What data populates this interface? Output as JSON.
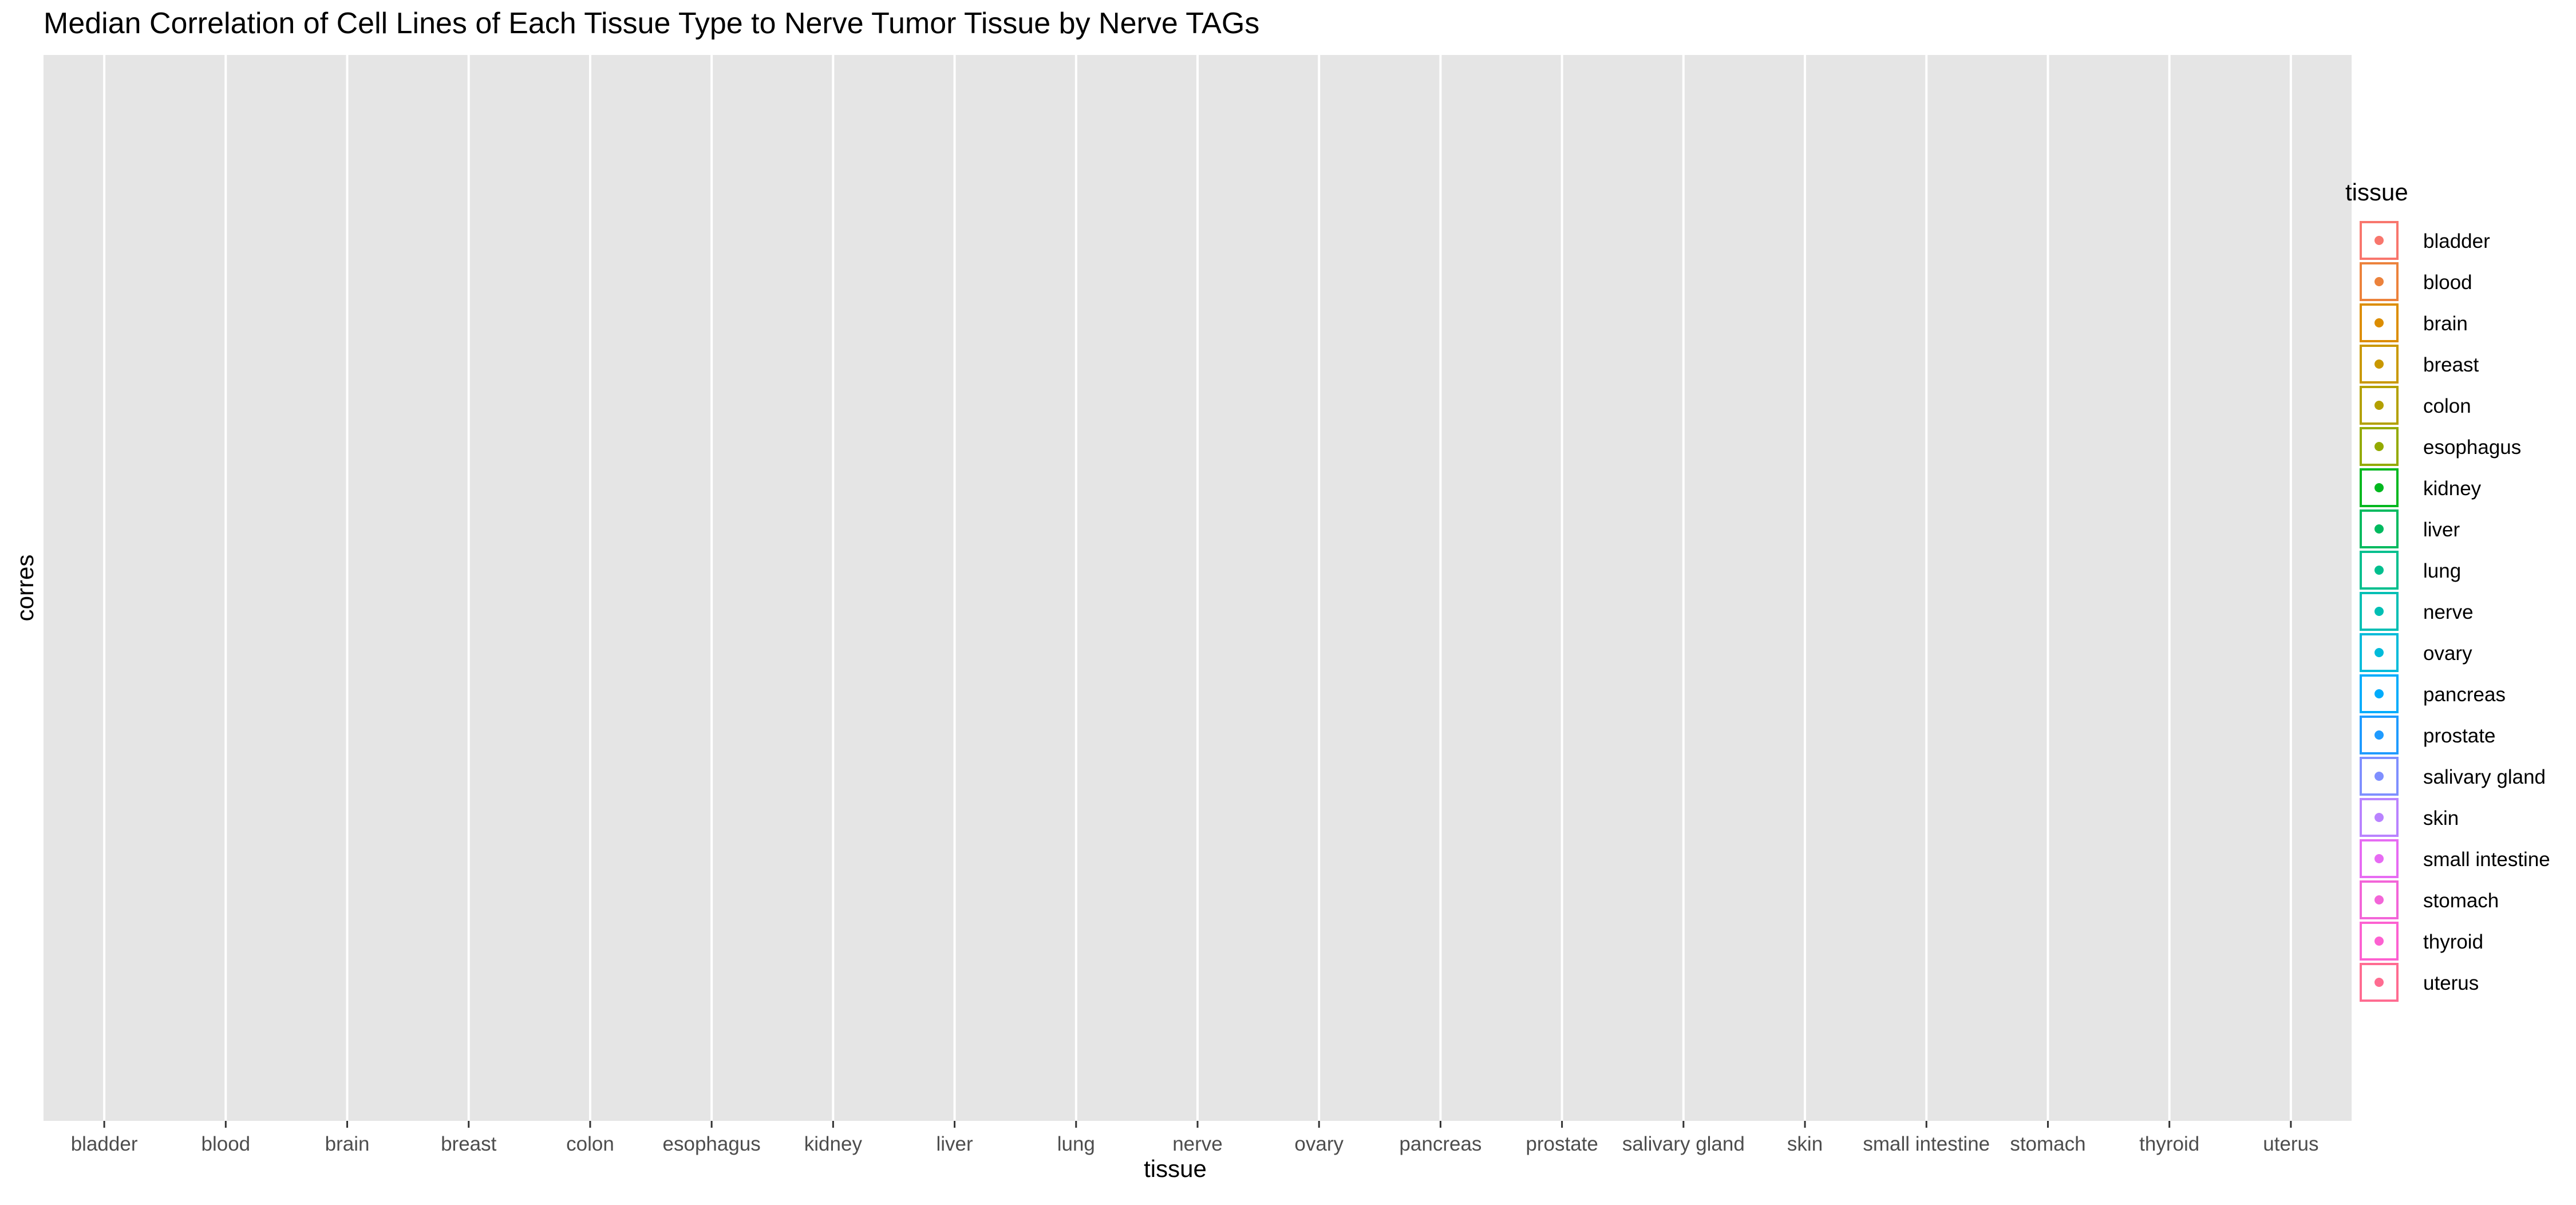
{
  "chart_data": {
    "type": "scatter",
    "title": "Median Correlation of Cell Lines of Each Tissue Type to Nerve Tumor Tissue by Nerve TAGs",
    "xlabel": "tissue",
    "ylabel": "corres",
    "categories": [
      "bladder",
      "blood",
      "brain",
      "breast",
      "colon",
      "esophagus",
      "kidney",
      "liver",
      "lung",
      "nerve",
      "ovary",
      "pancreas",
      "prostate",
      "salivary gland",
      "skin",
      "small intestine",
      "stomach",
      "thyroid",
      "uterus"
    ],
    "values": [],
    "grid": true,
    "legend": {
      "title": "tissue",
      "position": "right",
      "entries": [
        {
          "label": "bladder",
          "color": "#F8766D"
        },
        {
          "label": "blood",
          "color": "#EC823C"
        },
        {
          "label": "brain",
          "color": "#DC8D00"
        },
        {
          "label": "breast",
          "color": "#C99800"
        },
        {
          "label": "colon",
          "color": "#B3A000"
        },
        {
          "label": "esophagus",
          "color": "#93AA00"
        },
        {
          "label": "kidney",
          "color": "#00B81F"
        },
        {
          "label": "liver",
          "color": "#00BA5F"
        },
        {
          "label": "lung",
          "color": "#00BF8E"
        },
        {
          "label": "nerve",
          "color": "#00BFB4"
        },
        {
          "label": "ovary",
          "color": "#00BBDA"
        },
        {
          "label": "pancreas",
          "color": "#00ACFC"
        },
        {
          "label": "prostate",
          "color": "#1F9BFF"
        },
        {
          "label": "salivary gland",
          "color": "#7F8FFF"
        },
        {
          "label": "skin",
          "color": "#B983FF"
        },
        {
          "label": "small intestine",
          "color": "#E76BF3"
        },
        {
          "label": "stomach",
          "color": "#F365D8"
        },
        {
          "label": "thyroid",
          "color": "#FD61D1"
        },
        {
          "label": "uterus",
          "color": "#FF6C91"
        }
      ]
    }
  }
}
